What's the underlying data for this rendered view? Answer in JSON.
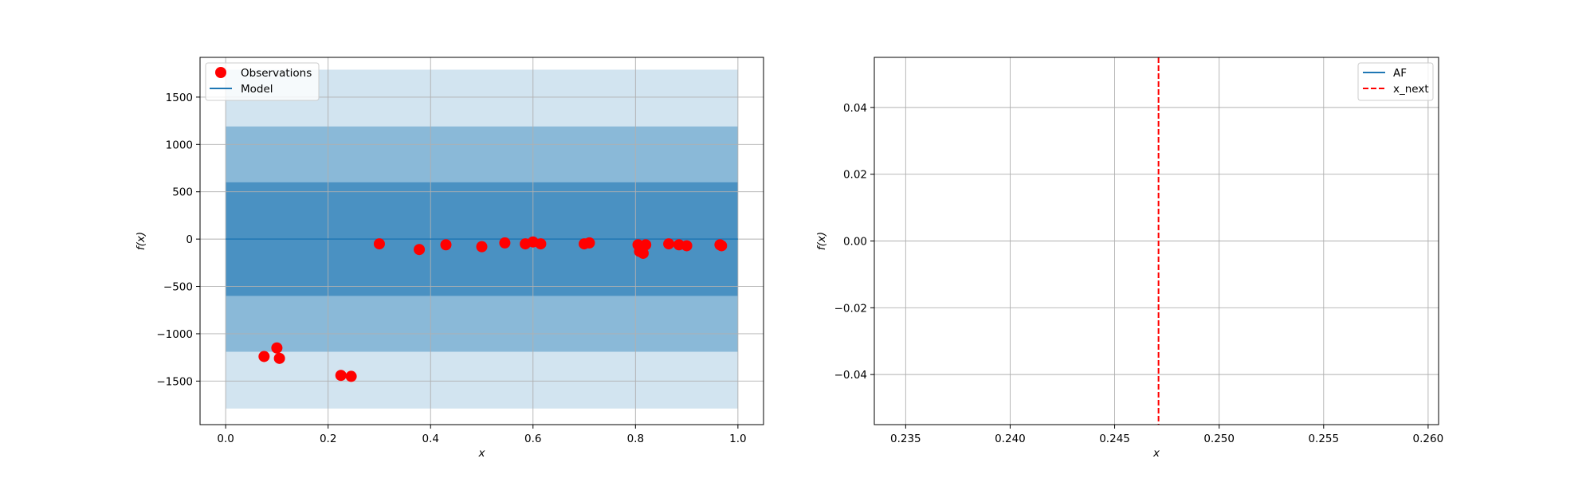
{
  "chart_data": [
    {
      "type": "scatter",
      "xlabel": "x",
      "ylabel": "f(x)",
      "xlim": [
        -0.05,
        1.05
      ],
      "ylim": [
        -1960,
        1920
      ],
      "xticks": [
        0.0,
        0.2,
        0.4,
        0.6,
        0.8,
        1.0
      ],
      "xtick_labels": [
        "0.0",
        "0.2",
        "0.4",
        "0.6",
        "0.8",
        "1.0"
      ],
      "yticks": [
        -1500,
        -1000,
        -500,
        0,
        500,
        1000,
        1500
      ],
      "ytick_labels": [
        "−1500",
        "−1000",
        "−500",
        "0",
        "500",
        "1000",
        "1500"
      ],
      "grid": true,
      "legend_position": "top-left",
      "colors": {
        "observations": "#ff0000",
        "model": "#1f77b4",
        "band_fill": "#1f77b4"
      },
      "bands": [
        {
          "x": [
            0.0,
            1.0
          ],
          "lower": -1790,
          "upper": 1790,
          "opacity": 0.2
        },
        {
          "x": [
            0.0,
            1.0
          ],
          "lower": -1190,
          "upper": 1190,
          "opacity": 0.4
        },
        {
          "x": [
            0.0,
            1.0
          ],
          "lower": -600,
          "upper": 600,
          "opacity": 0.6
        }
      ],
      "series": [
        {
          "name": "Observations",
          "kind": "scatter",
          "x": [
            0.075,
            0.1,
            0.105,
            0.225,
            0.245,
            0.3,
            0.378,
            0.43,
            0.5,
            0.545,
            0.585,
            0.6,
            0.615,
            0.7,
            0.71,
            0.805,
            0.808,
            0.815,
            0.82,
            0.865,
            0.885,
            0.9,
            0.965,
            0.968
          ],
          "y": [
            -1240,
            -1150,
            -1260,
            -1440,
            -1450,
            -50,
            -110,
            -60,
            -80,
            -40,
            -50,
            -30,
            -50,
            -50,
            -40,
            -60,
            -130,
            -150,
            -60,
            -50,
            -60,
            -70,
            -60,
            -70
          ]
        },
        {
          "name": "Model",
          "kind": "line",
          "x": [
            0.0,
            1.0
          ],
          "y": [
            0,
            0
          ]
        }
      ]
    },
    {
      "type": "line",
      "xlabel": "x",
      "ylabel": "f(x)",
      "xlim": [
        0.2335,
        0.2605
      ],
      "ylim": [
        -0.055,
        0.055
      ],
      "xticks": [
        0.235,
        0.24,
        0.245,
        0.25,
        0.255,
        0.26
      ],
      "xtick_labels": [
        "0.235",
        "0.240",
        "0.245",
        "0.250",
        "0.255",
        "0.260"
      ],
      "yticks": [
        -0.04,
        -0.02,
        0.0,
        0.02,
        0.04
      ],
      "ytick_labels": [
        "−0.04",
        "−0.02",
        "0.00",
        "0.02",
        "0.04"
      ],
      "grid": true,
      "legend_position": "top-right",
      "colors": {
        "af": "#1f77b4",
        "x_next": "#ff0000"
      },
      "series": [
        {
          "name": "AF",
          "kind": "line",
          "x": [],
          "y": []
        },
        {
          "name": "x_next",
          "kind": "vline",
          "style": "dashed",
          "x": 0.2471
        }
      ]
    }
  ]
}
